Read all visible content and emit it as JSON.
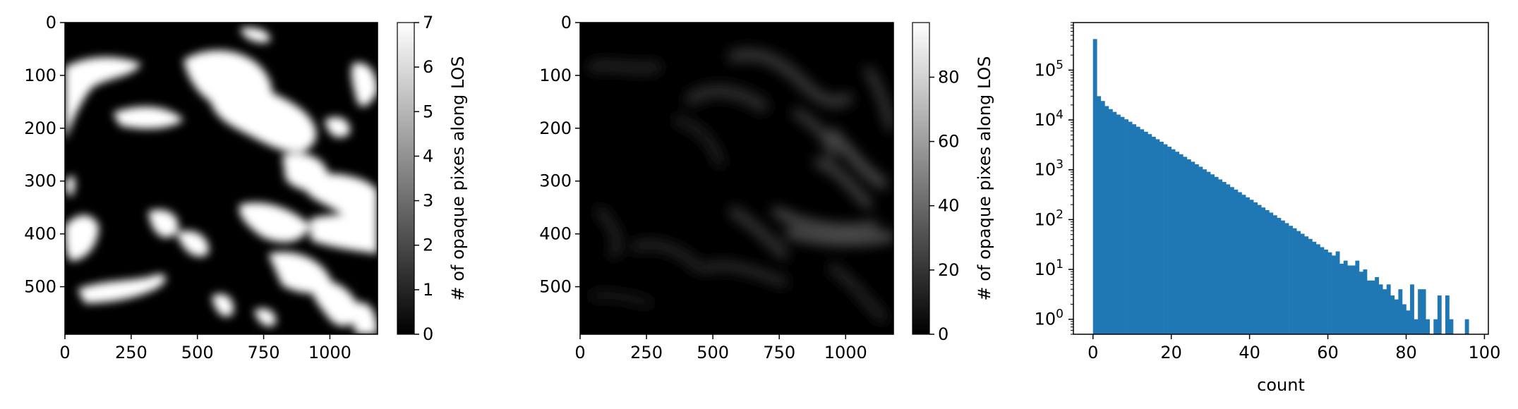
{
  "chart_data": [
    {
      "type": "heatmap",
      "title": "",
      "colormap": "gray",
      "xlim": [
        0,
        1180
      ],
      "ylim": [
        590,
        0
      ],
      "xticks": [
        "0",
        "250",
        "500",
        "750",
        "1000"
      ],
      "xtick_values": [
        0,
        250,
        500,
        750,
        1000
      ],
      "yticks": [
        "0",
        "100",
        "200",
        "300",
        "400",
        "500"
      ],
      "ytick_values": [
        0,
        100,
        200,
        300,
        400,
        500
      ],
      "colorbar": {
        "label": "# of opaque pixes along LOS",
        "range": [
          0,
          7
        ],
        "ticks": [
          "0",
          "1",
          "2",
          "3",
          "4",
          "5",
          "6",
          "7"
        ],
        "tick_values": [
          0,
          1,
          2,
          3,
          4,
          5,
          6,
          7
        ]
      }
    },
    {
      "type": "heatmap",
      "title": "",
      "colormap": "gray",
      "xlim": [
        0,
        1180
      ],
      "ylim": [
        590,
        0
      ],
      "xticks": [
        "0",
        "250",
        "500",
        "750",
        "1000"
      ],
      "xtick_values": [
        0,
        250,
        500,
        750,
        1000
      ],
      "yticks": [
        "0",
        "100",
        "200",
        "300",
        "400",
        "500"
      ],
      "ytick_values": [
        0,
        100,
        200,
        300,
        400,
        500
      ],
      "colorbar": {
        "label": "# of opaque pixes along LOS",
        "range": [
          0,
          97
        ],
        "ticks": [
          "0",
          "20",
          "40",
          "60",
          "80"
        ],
        "tick_values": [
          0,
          20,
          40,
          60,
          80
        ]
      }
    },
    {
      "type": "bar",
      "title": "",
      "xlabel": "count",
      "ylabel": "",
      "yscale": "log",
      "xlim": [
        -5,
        101
      ],
      "ylim": [
        0.5,
        900000
      ],
      "bar_color": "#1f77b4",
      "xticks": [
        "0",
        "20",
        "40",
        "60",
        "80",
        "100"
      ],
      "xtick_values": [
        0,
        20,
        40,
        60,
        80,
        100
      ],
      "yticks": [
        "10^0",
        "10^1",
        "10^2",
        "10^3",
        "10^4",
        "10^5"
      ],
      "ytick_values": [
        1,
        10,
        100,
        1000,
        10000,
        100000
      ],
      "bin_width": 1,
      "bin_start": 0,
      "values": [
        420000,
        30000,
        24000,
        19000,
        16500,
        14500,
        12800,
        11500,
        10300,
        9200,
        8200,
        7300,
        6500,
        5800,
        5200,
        4600,
        4100,
        3650,
        3250,
        2900,
        2580,
        2300,
        2050,
        1820,
        1620,
        1450,
        1290,
        1150,
        1020,
        910,
        810,
        720,
        640,
        570,
        510,
        450,
        400,
        355,
        315,
        280,
        250,
        222,
        197,
        175,
        155,
        138,
        122,
        108,
        96,
        85,
        75,
        67,
        59,
        52,
        46,
        41,
        36,
        32,
        28,
        25,
        22,
        19,
        23,
        13,
        15,
        12,
        12,
        15,
        9,
        10,
        6,
        6,
        7,
        5,
        4,
        5,
        3,
        2.5,
        4,
        2,
        1.5,
        5,
        1,
        4,
        4,
        1,
        0,
        1,
        3,
        0,
        3,
        1,
        0,
        0,
        0,
        1
      ]
    }
  ]
}
